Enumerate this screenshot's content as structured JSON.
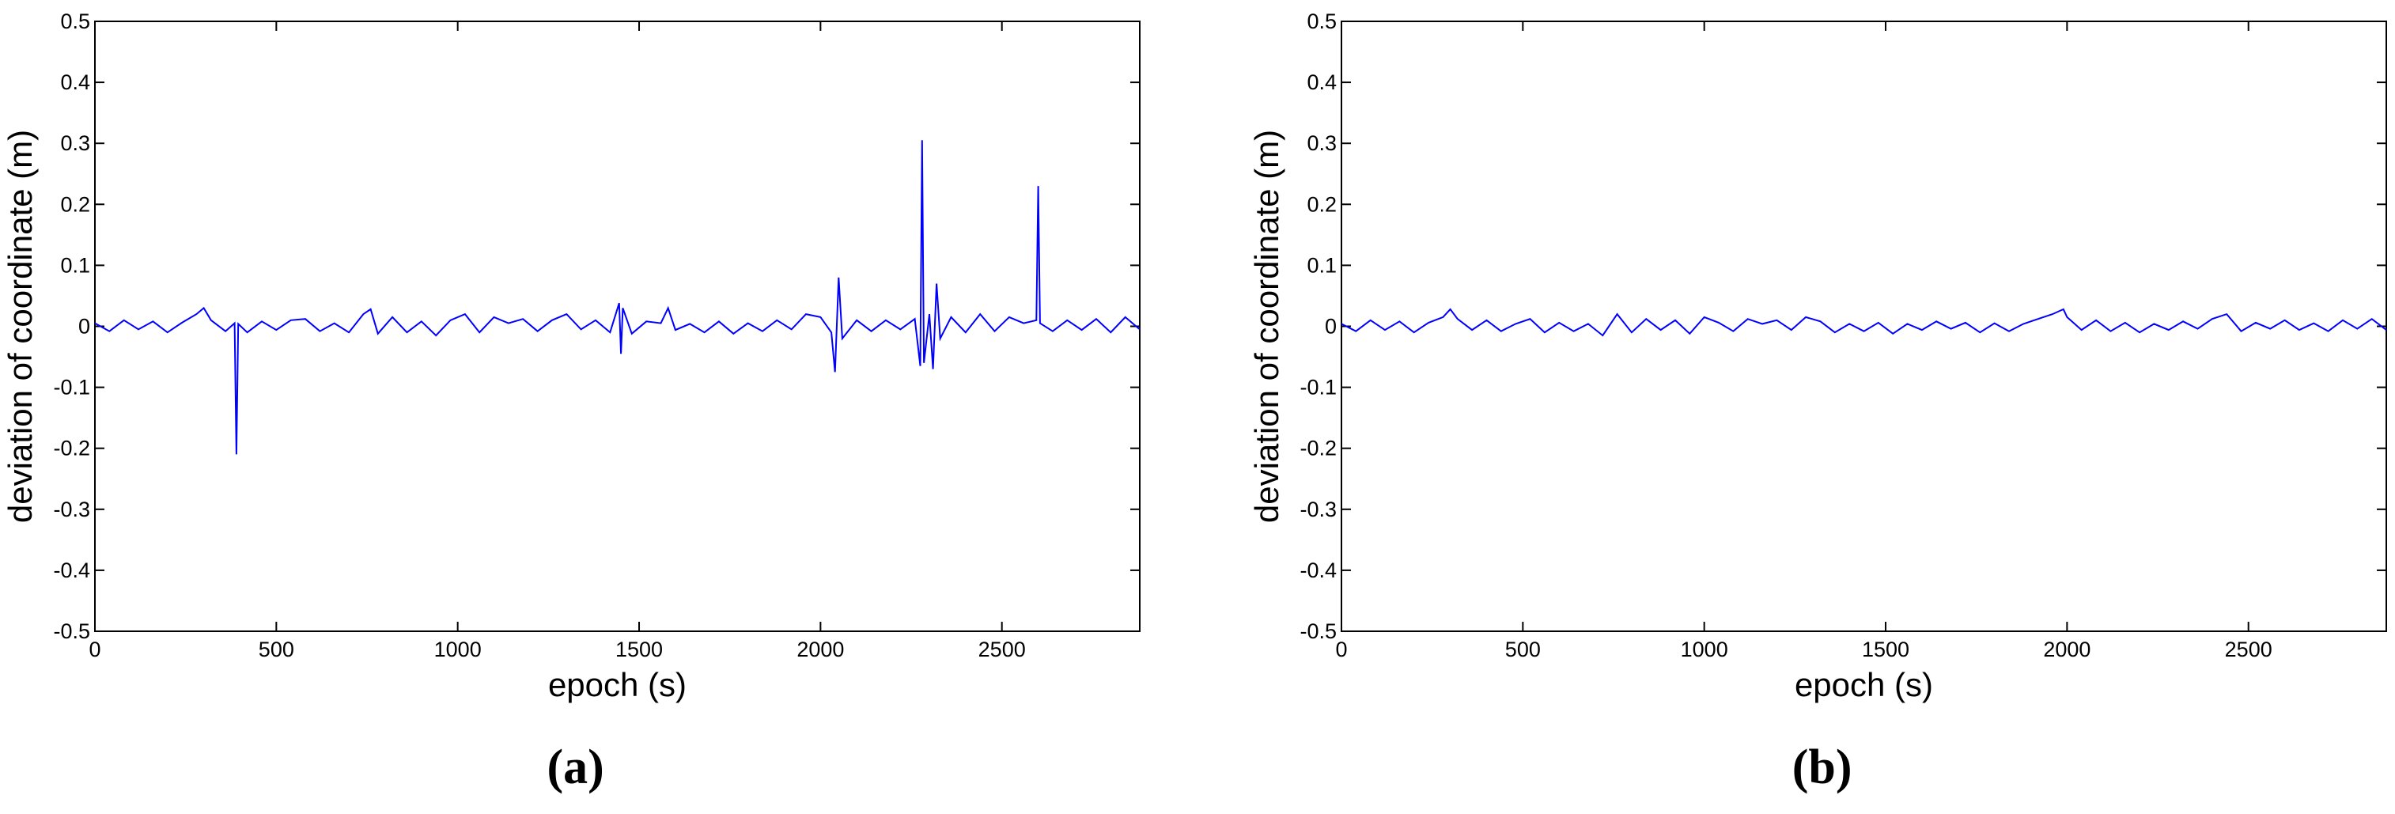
{
  "chart_data": [
    {
      "type": "line",
      "caption": "(a)",
      "xlabel": "epoch (s)",
      "ylabel": "deviation of coordinate (m)",
      "color": "#0000ff",
      "xlim": [
        0,
        2880
      ],
      "ylim": [
        -0.5,
        0.5
      ],
      "xticks": [
        0,
        500,
        1000,
        1500,
        2000,
        2500
      ],
      "yticks": [
        -0.5,
        -0.4,
        -0.3,
        -0.2,
        -0.1,
        0,
        0.1,
        0.2,
        0.3,
        0.4,
        0.5
      ],
      "x": [
        0,
        40,
        80,
        120,
        160,
        200,
        240,
        280,
        300,
        320,
        360,
        385,
        390,
        395,
        420,
        460,
        500,
        540,
        580,
        620,
        660,
        700,
        740,
        760,
        780,
        820,
        860,
        900,
        940,
        980,
        1020,
        1060,
        1100,
        1140,
        1180,
        1220,
        1260,
        1300,
        1340,
        1380,
        1420,
        1445,
        1450,
        1455,
        1480,
        1520,
        1560,
        1580,
        1600,
        1640,
        1680,
        1720,
        1760,
        1800,
        1840,
        1880,
        1920,
        1960,
        2000,
        2030,
        2040,
        2050,
        2060,
        2100,
        2140,
        2180,
        2220,
        2260,
        2275,
        2280,
        2285,
        2300,
        2310,
        2320,
        2330,
        2360,
        2400,
        2440,
        2480,
        2520,
        2560,
        2595,
        2600,
        2605,
        2640,
        2680,
        2720,
        2760,
        2800,
        2840,
        2880
      ],
      "values": [
        0.005,
        -0.008,
        0.01,
        -0.005,
        0.008,
        -0.01,
        0.006,
        0.02,
        0.03,
        0.01,
        -0.008,
        0.005,
        -0.21,
        0.004,
        -0.01,
        0.008,
        -0.006,
        0.01,
        0.012,
        -0.008,
        0.005,
        -0.01,
        0.02,
        0.028,
        -0.012,
        0.015,
        -0.01,
        0.008,
        -0.015,
        0.01,
        0.02,
        -0.01,
        0.015,
        0.005,
        0.012,
        -0.008,
        0.01,
        0.02,
        -0.005,
        0.01,
        -0.01,
        0.038,
        -0.045,
        0.03,
        -0.012,
        0.008,
        0.005,
        0.03,
        -0.006,
        0.004,
        -0.01,
        0.008,
        -0.012,
        0.005,
        -0.008,
        0.01,
        -0.005,
        0.02,
        0.015,
        -0.01,
        -0.075,
        0.08,
        -0.02,
        0.01,
        -0.008,
        0.01,
        -0.005,
        0.012,
        -0.065,
        0.305,
        -0.06,
        0.02,
        -0.07,
        0.07,
        -0.02,
        0.015,
        -0.01,
        0.02,
        -0.008,
        0.015,
        0.005,
        0.01,
        0.23,
        0.005,
        -0.008,
        0.01,
        -0.006,
        0.012,
        -0.01,
        0.015,
        -0.005
      ]
    },
    {
      "type": "line",
      "caption": "(b)",
      "xlabel": "epoch (s)",
      "ylabel": "deviation of coordinate (m)",
      "color": "#0000ff",
      "xlim": [
        0,
        2880
      ],
      "ylim": [
        -0.5,
        0.5
      ],
      "xticks": [
        0,
        500,
        1000,
        1500,
        2000,
        2500
      ],
      "yticks": [
        -0.5,
        -0.4,
        -0.3,
        -0.2,
        -0.1,
        0,
        0.1,
        0.2,
        0.3,
        0.4,
        0.5
      ],
      "x": [
        0,
        40,
        80,
        120,
        160,
        200,
        240,
        280,
        300,
        320,
        360,
        400,
        440,
        480,
        520,
        560,
        600,
        640,
        680,
        720,
        760,
        800,
        840,
        880,
        920,
        960,
        1000,
        1040,
        1080,
        1120,
        1160,
        1200,
        1240,
        1280,
        1320,
        1360,
        1400,
        1440,
        1480,
        1520,
        1560,
        1600,
        1640,
        1680,
        1720,
        1760,
        1800,
        1840,
        1880,
        1920,
        1960,
        1990,
        2000,
        2040,
        2080,
        2120,
        2160,
        2200,
        2240,
        2280,
        2320,
        2360,
        2400,
        2440,
        2480,
        2520,
        2560,
        2600,
        2640,
        2680,
        2720,
        2760,
        2800,
        2840,
        2880
      ],
      "values": [
        0.004,
        -0.008,
        0.01,
        -0.006,
        0.008,
        -0.01,
        0.006,
        0.015,
        0.028,
        0.012,
        -0.006,
        0.01,
        -0.008,
        0.004,
        0.012,
        -0.01,
        0.006,
        -0.008,
        0.004,
        -0.015,
        0.02,
        -0.01,
        0.012,
        -0.006,
        0.01,
        -0.012,
        0.015,
        0.006,
        -0.008,
        0.012,
        0.004,
        0.01,
        -0.006,
        0.015,
        0.008,
        -0.01,
        0.004,
        -0.008,
        0.006,
        -0.012,
        0.004,
        -0.006,
        0.008,
        -0.004,
        0.006,
        -0.01,
        0.005,
        -0.008,
        0.004,
        0.012,
        0.02,
        0.028,
        0.015,
        -0.006,
        0.01,
        -0.008,
        0.006,
        -0.01,
        0.004,
        -0.006,
        0.008,
        -0.004,
        0.012,
        0.02,
        -0.008,
        0.006,
        -0.004,
        0.01,
        -0.006,
        0.005,
        -0.008,
        0.01,
        -0.004,
        0.012,
        -0.006
      ]
    }
  ]
}
